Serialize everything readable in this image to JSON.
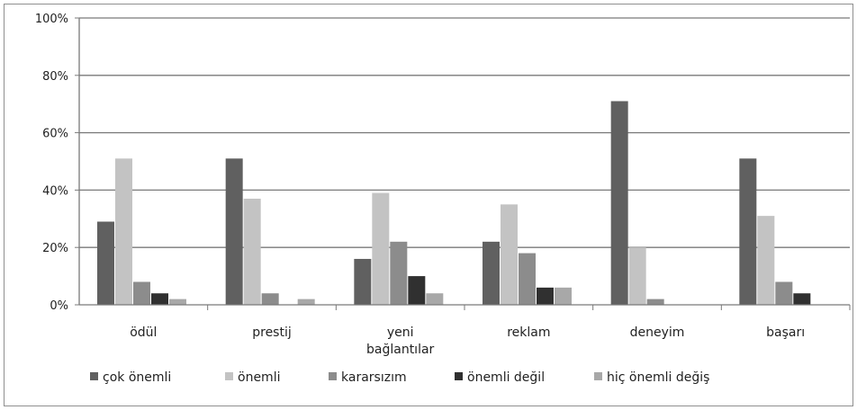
{
  "chart_data": {
    "type": "bar",
    "categories": [
      "ödül",
      "prestij",
      "yeni\nbağlantılar",
      "reklam",
      "deneyim",
      "başarı"
    ],
    "series": [
      {
        "name": "çok önemli",
        "color": "#606060",
        "values": [
          29,
          51,
          16,
          22,
          71,
          51
        ]
      },
      {
        "name": "önemli",
        "color": "#c3c3c3",
        "values": [
          51,
          37,
          39,
          35,
          20,
          31
        ]
      },
      {
        "name": "kararsızım",
        "color": "#8c8c8c",
        "values": [
          8,
          4,
          22,
          18,
          2,
          8
        ]
      },
      {
        "name": "önemli değil",
        "color": "#303030",
        "values": [
          4,
          0,
          10,
          6,
          0,
          4
        ]
      },
      {
        "name": "hiç önemli değiş",
        "color": "#a8a8a8",
        "values": [
          2,
          2,
          4,
          6,
          0,
          0
        ]
      }
    ],
    "ylim": [
      0,
      100
    ],
    "yticks": [
      "0%",
      "20%",
      "40%",
      "60%",
      "80%",
      "100%"
    ],
    "grid": true,
    "legend": "bottom"
  }
}
